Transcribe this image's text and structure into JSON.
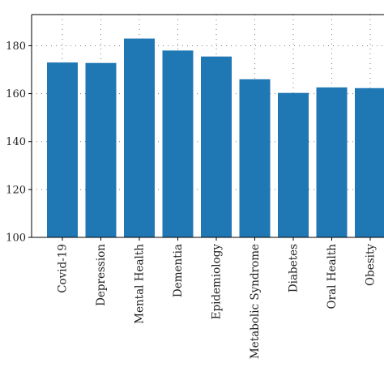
{
  "chart_data": {
    "type": "bar",
    "categories": [
      "Covid-19",
      "Depression",
      "Mental Health",
      "Dementia",
      "Epidemiology",
      "Metabolic Syndrome",
      "Diabetes",
      "Oral Health",
      "Obesity"
    ],
    "values": [
      173,
      172.8,
      183,
      178,
      175.5,
      166,
      160.3,
      162.6,
      162.3
    ],
    "title": "",
    "xlabel": "",
    "ylabel": "",
    "ylim": [
      100,
      193
    ],
    "yticks": [
      100,
      120,
      140,
      160,
      180
    ],
    "grid": true,
    "bar_color": "#1f77b4"
  }
}
